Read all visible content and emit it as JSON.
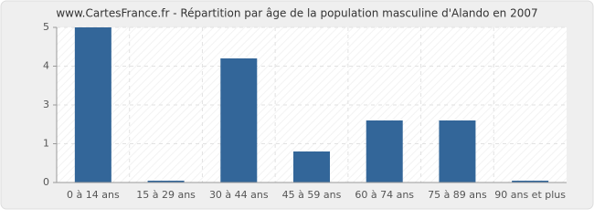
{
  "chart_data": {
    "type": "bar",
    "title": "www.CartesFrance.fr - Répartition par âge de la population masculine d'Alando en 2007",
    "categories": [
      "0 à 14 ans",
      "15 à 29 ans",
      "30 à 44 ans",
      "45 à 59 ans",
      "60 à 74 ans",
      "75 à 89 ans",
      "90 ans et plus"
    ],
    "values": [
      5,
      0,
      4,
      1,
      2,
      2,
      0
    ],
    "color": "#336699",
    "ylim": [
      0,
      5
    ],
    "yticks": [
      0,
      {
        "value": 1.25,
        "label": "1"
      },
      {
        "value": 2.5,
        "label": "3"
      },
      {
        "value": 3.75,
        "label": "4"
      },
      5
    ],
    "grid": true
  }
}
